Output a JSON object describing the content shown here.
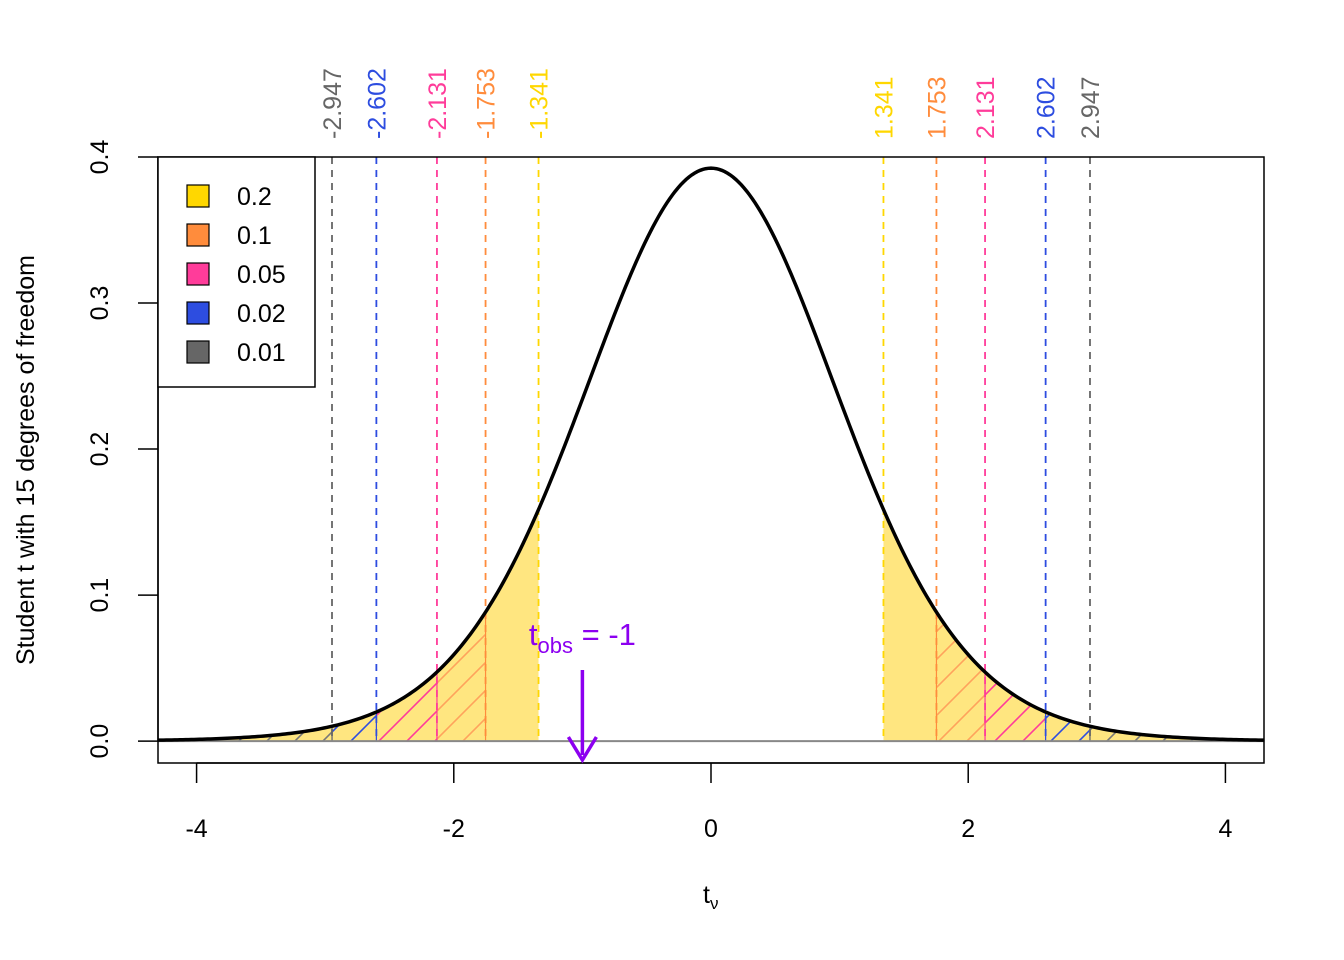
{
  "chart_data": {
    "type": "area",
    "degrees_of_freedom": 15,
    "xlabel": "t",
    "xlabel_subscript": "ν",
    "ylabel": "Student t with 15 degrees of freedom",
    "xlim": [
      -4.3,
      4.3
    ],
    "ylim": [
      -0.015,
      0.4
    ],
    "x_ticks": [
      {
        "value": -4,
        "label": "-4"
      },
      {
        "value": -2,
        "label": "-2"
      },
      {
        "value": 0,
        "label": "0"
      },
      {
        "value": 2,
        "label": "2"
      },
      {
        "value": 4,
        "label": "4"
      }
    ],
    "y_ticks": [
      {
        "value": 0.0,
        "label": "0.0"
      },
      {
        "value": 0.1,
        "label": "0.1"
      },
      {
        "value": 0.2,
        "label": "0.2"
      },
      {
        "value": 0.3,
        "label": "0.3"
      },
      {
        "value": 0.4,
        "label": "0.4"
      }
    ],
    "critical_values": [
      {
        "alpha": "0.2",
        "value": 1.341,
        "neg_label": "-1.341",
        "pos_label": "1.341",
        "color": "#ffd700",
        "fill": "#ffe680",
        "hatch": null
      },
      {
        "alpha": "0.1",
        "value": 1.753,
        "neg_label": "-1.753",
        "pos_label": "1.753",
        "color": "#ff8c3c",
        "fill": null,
        "hatch": "#ffa35c"
      },
      {
        "alpha": "0.05",
        "value": 2.131,
        "neg_label": "-2.131",
        "pos_label": "2.131",
        "color": "#ff3c9a",
        "fill": null,
        "hatch": "#ff3c9a"
      },
      {
        "alpha": "0.02",
        "value": 2.602,
        "neg_label": "-2.602",
        "pos_label": "2.602",
        "color": "#2d4de0",
        "fill": null,
        "hatch": "#2d4de0"
      },
      {
        "alpha": "0.01",
        "value": 2.947,
        "neg_label": "-2.947",
        "pos_label": "2.947",
        "color": "#666666",
        "fill": null,
        "hatch": "#777777"
      }
    ],
    "legend": {
      "placement": "top-left",
      "entries": [
        {
          "label": "0.2",
          "color": "#ffd700"
        },
        {
          "label": "0.1",
          "color": "#ff8c3c"
        },
        {
          "label": "0.05",
          "color": "#ff3c9a"
        },
        {
          "label": "0.02",
          "color": "#2d4de0"
        },
        {
          "label": "0.01",
          "color": "#666666"
        }
      ]
    },
    "observed": {
      "value": -1,
      "label_main": "t",
      "label_sub": "obs",
      "label_rest": " = -1",
      "color": "#8c00f0"
    },
    "curve_color": "#000000",
    "grid": false
  }
}
